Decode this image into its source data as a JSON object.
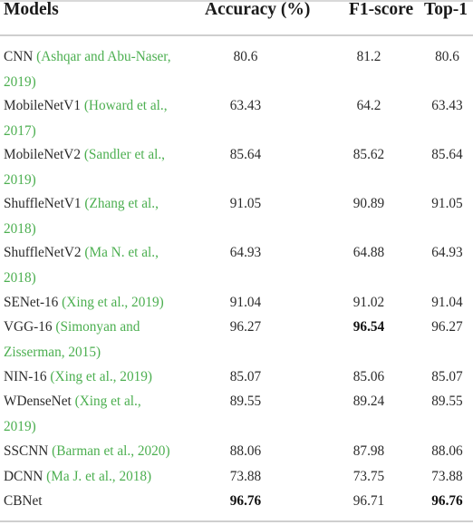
{
  "header": {
    "models": "Models",
    "accuracy": "Accuracy (%)",
    "f1": "F1-score",
    "top1": "Top-1"
  },
  "rows": [
    {
      "name": "CNN",
      "cite_line1": "(Ashqar and Abu-Naser,",
      "cite_line2": "2019)",
      "accuracy": "80.6",
      "f1": "81.2",
      "top1": "80.6"
    },
    {
      "name": "MobileNetV1",
      "cite_line1": "(Howard et al.,",
      "cite_line2": "2017)",
      "accuracy": "63.43",
      "f1": "64.2",
      "top1": "63.43"
    },
    {
      "name": "MobileNetV2",
      "cite_line1": "(Sandler et al.,",
      "cite_line2": "2019)",
      "accuracy": "85.64",
      "f1": "85.62",
      "top1": "85.64"
    },
    {
      "name": "ShuffleNetV1",
      "cite_line1": "(Zhang et al.,",
      "cite_line2": "2018)",
      "accuracy": "91.05",
      "f1": "90.89",
      "top1": "91.05"
    },
    {
      "name": "ShuffleNetV2",
      "cite_line1": "(Ma N. et al.,",
      "cite_line2": "2018)",
      "accuracy": "64.93",
      "f1": "64.88",
      "top1": "64.93"
    },
    {
      "name": "SENet-16",
      "cite_line1": "(Xing et al., 2019)",
      "cite_line2": "",
      "accuracy": "91.04",
      "f1": "91.02",
      "top1": "91.04"
    },
    {
      "name": "VGG-16",
      "cite_line1": "(Simonyan and",
      "cite_line2": "Zisserman, 2015)",
      "accuracy": "96.27",
      "f1": "96.54",
      "top1": "96.27"
    },
    {
      "name": "NIN-16",
      "cite_line1": "(Xing et al., 2019)",
      "cite_line2": "",
      "accuracy": "85.07",
      "f1": "85.06",
      "top1": "85.07"
    },
    {
      "name": "WDenseNet",
      "cite_line1": "(Xing et al.,",
      "cite_line2": "2019)",
      "accuracy": "89.55",
      "f1": "89.24",
      "top1": "89.55"
    },
    {
      "name": "SSCNN",
      "cite_line1": "(Barman et al., 2020)",
      "cite_line2": "",
      "accuracy": "88.06",
      "f1": "87.98",
      "top1": "88.06"
    },
    {
      "name": "DCNN",
      "cite_line1": "(Ma J. et al., 2018)",
      "cite_line2": "",
      "accuracy": "73.88",
      "f1": "73.75",
      "top1": "73.88"
    },
    {
      "name": "CBNet",
      "cite_line1": "",
      "cite_line2": "",
      "accuracy": "96.76",
      "f1": "96.71",
      "top1": "96.76"
    }
  ]
}
